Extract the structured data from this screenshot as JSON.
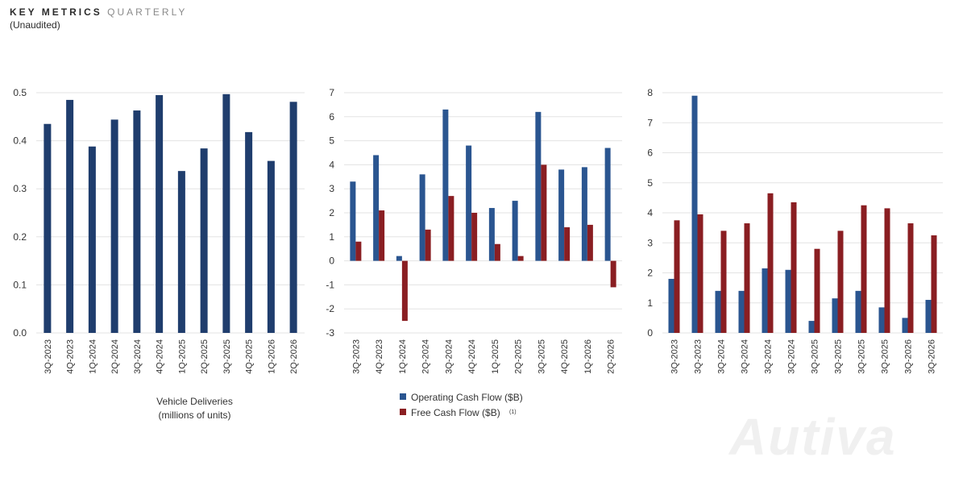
{
  "header": {
    "title_bold": "KEY METRICS",
    "title_light": "QUARTERLY",
    "subtitle": "(Unaudited)"
  },
  "logo_text": "Autiva",
  "colors": {
    "dark_blue": "#1f3d6d",
    "blue": "#2a5590",
    "red": "#8a1e22",
    "grid": "#e3e3e3",
    "axis_text": "#333333"
  },
  "chart_data": [
    {
      "type": "bar",
      "categories": [
        "3Q-2023",
        "4Q-2023",
        "1Q-2024",
        "2Q-2024",
        "3Q-2024",
        "4Q-2024",
        "1Q-2025",
        "2Q-2025",
        "3Q-2025",
        "4Q-2025",
        "1Q-2026",
        "2Q-2026"
      ],
      "series": [
        {
          "values": [
            0.435,
            0.485,
            0.388,
            0.444,
            0.463,
            0.495,
            0.337,
            0.384,
            0.497,
            0.418,
            0.358,
            0.481
          ]
        }
      ],
      "ylim": [
        0,
        0.5
      ],
      "yticks": [
        "0.0",
        "0.1",
        "0.2",
        "0.3",
        "0.4",
        "0.5"
      ],
      "xlabel": "Vehicle Deliveries\n(millions of units)",
      "grid": true
    },
    {
      "type": "bar",
      "categories": [
        "3Q-2023",
        "4Q-2023",
        "1Q-2024",
        "2Q-2024",
        "3Q-2024",
        "4Q-2024",
        "1Q-2025",
        "2Q-2025",
        "3Q-2025",
        "4Q-2025",
        "1Q-2026",
        "2Q-2026"
      ],
      "series": [
        {
          "name": "Operating Cash Flow ($B)",
          "values": [
            3.3,
            4.4,
            0.2,
            3.6,
            6.3,
            4.8,
            2.2,
            2.5,
            6.2,
            3.8,
            3.9,
            4.7
          ]
        },
        {
          "name": "Free Cash Flow ($B)",
          "note": "(1)",
          "values": [
            0.8,
            2.1,
            -2.5,
            1.3,
            2.7,
            2.0,
            0.7,
            0.2,
            4.0,
            1.4,
            1.5,
            -1.1
          ]
        }
      ],
      "ylim": [
        -3,
        7
      ],
      "yticks": [
        "-3",
        "-2",
        "-1",
        "0",
        "1",
        "2",
        "3",
        "4",
        "5",
        "6",
        "7"
      ],
      "legend": "bottom",
      "grid": true
    },
    {
      "type": "bar",
      "categories": [
        "3Q-2023",
        "3Q-2023",
        "3Q-2024",
        "3Q-2024",
        "3Q-2024",
        "3Q-2024",
        "3Q-2025",
        "3Q-2025",
        "3Q-2025",
        "3Q-2025",
        "3Q-2026",
        "3Q-2026"
      ],
      "series": [
        {
          "values": [
            1.8,
            7.9,
            1.4,
            1.4,
            2.15,
            2.1,
            0.4,
            1.15,
            1.4,
            0.85,
            0.5,
            1.1
          ]
        },
        {
          "values": [
            3.75,
            3.95,
            3.4,
            3.65,
            4.65,
            4.35,
            2.8,
            3.4,
            4.25,
            4.15,
            3.65,
            3.25
          ]
        }
      ],
      "ylim": [
        0,
        8
      ],
      "yticks": [
        "0",
        "1",
        "2",
        "3",
        "4",
        "5",
        "6",
        "7",
        "8"
      ],
      "grid": true
    }
  ]
}
